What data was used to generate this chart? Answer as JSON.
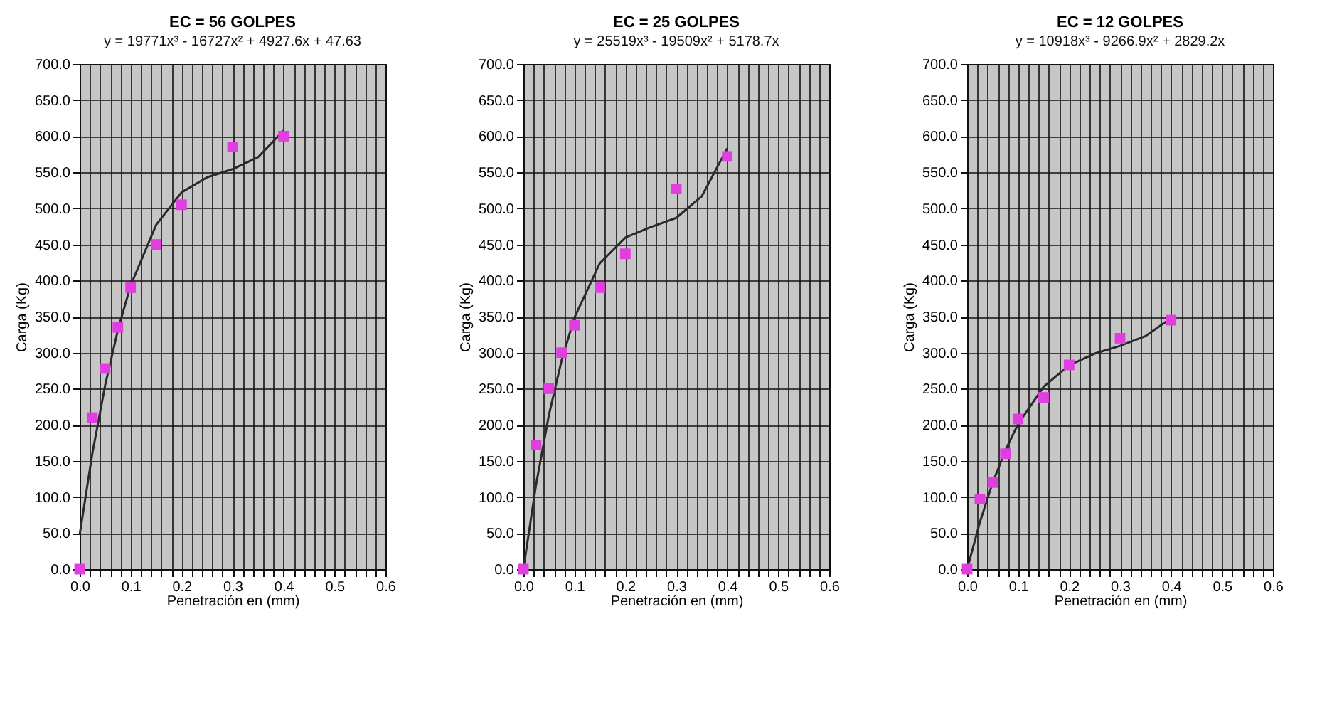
{
  "chart_data": [
    {
      "type": "scatter",
      "title": "EC = 56 GOLPES",
      "xlabel": "Penetración en (mm)",
      "ylabel": "Carga (Kg)",
      "annotations": [
        "y = 19771x³ - 16727x² + 4927.6x + 47.63"
      ],
      "marker": "square",
      "grid": true,
      "xlim": [
        0,
        0.6
      ],
      "ylim": [
        0,
        700
      ],
      "xticks": [
        {
          "value": 0,
          "label": "0.0"
        },
        {
          "value": 0.02,
          "label": null
        },
        {
          "value": 0.04,
          "label": null
        },
        {
          "value": 0.06,
          "label": null
        },
        {
          "value": 0.08,
          "label": null
        },
        {
          "value": 0.1,
          "label": "0.1"
        },
        {
          "value": 0.12,
          "label": null
        },
        {
          "value": 0.14,
          "label": null
        },
        {
          "value": 0.16,
          "label": null
        },
        {
          "value": 0.18,
          "label": null
        },
        {
          "value": 0.2,
          "label": "0.2"
        },
        {
          "value": 0.22,
          "label": null
        },
        {
          "value": 0.24,
          "label": null
        },
        {
          "value": 0.26,
          "label": null
        },
        {
          "value": 0.28,
          "label": null
        },
        {
          "value": 0.3,
          "label": "0.3"
        },
        {
          "value": 0.32,
          "label": null
        },
        {
          "value": 0.34,
          "label": null
        },
        {
          "value": 0.36,
          "label": null
        },
        {
          "value": 0.38,
          "label": null
        },
        {
          "value": 0.4,
          "label": "0.4"
        },
        {
          "value": 0.42,
          "label": null
        },
        {
          "value": 0.44,
          "label": null
        },
        {
          "value": 0.46,
          "label": null
        },
        {
          "value": 0.48,
          "label": null
        },
        {
          "value": 0.5,
          "label": "0.5"
        },
        {
          "value": 0.52,
          "label": null
        },
        {
          "value": 0.54,
          "label": null
        },
        {
          "value": 0.56,
          "label": null
        },
        {
          "value": 0.58,
          "label": null
        },
        {
          "value": 0.6,
          "label": "0.6"
        }
      ],
      "yticks": [
        {
          "value": 0,
          "label": "0.0"
        },
        {
          "value": 50,
          "label": "50.0"
        },
        {
          "value": 100,
          "label": "100.0"
        },
        {
          "value": 150,
          "label": "150.0"
        },
        {
          "value": 200,
          "label": "200.0"
        },
        {
          "value": 250,
          "label": "250.0"
        },
        {
          "value": 300,
          "label": "300.0"
        },
        {
          "value": 350,
          "label": "350.0"
        },
        {
          "value": 400,
          "label": "400.0"
        },
        {
          "value": 450,
          "label": "450.0"
        },
        {
          "value": 500,
          "label": "500.0"
        },
        {
          "value": 550,
          "label": "550.0"
        },
        {
          "value": 600,
          "label": "600.0"
        },
        {
          "value": 650,
          "label": "650.0"
        },
        {
          "value": 700,
          "label": "700.0"
        }
      ],
      "series": [
        {
          "type": "line",
          "color": "#2a2a2a",
          "marker": "none",
          "x": [
            0,
            0.025,
            0.05,
            0.075,
            0.1,
            0.15,
            0.2,
            0.25,
            0.3,
            0.35,
            0.4
          ],
          "values": [
            47.6,
            160.7,
            254.7,
            331.4,
            392.9,
            477.1,
            522.2,
            543.0,
            554.3,
            570.9,
            607.7
          ]
        },
        {
          "type": "scatter",
          "color": "#e03ee0",
          "x": [
            0,
            0.025,
            0.05,
            0.075,
            0.1,
            0.15,
            0.2,
            0.3,
            0.4
          ],
          "values": [
            0,
            210,
            278,
            335,
            390,
            450,
            505,
            585,
            600
          ]
        }
      ]
    },
    {
      "type": "scatter",
      "title": "EC = 25 GOLPES",
      "xlabel": "Penetración en (mm)",
      "ylabel": "Carga (Kg)",
      "annotations": [
        "y = 25519x³ - 19509x² + 5178.7x"
      ],
      "marker": "square",
      "grid": true,
      "xlim": [
        0,
        0.6
      ],
      "ylim": [
        0,
        700
      ],
      "xticks": [
        {
          "value": 0,
          "label": "0.0"
        },
        {
          "value": 0.02,
          "label": null
        },
        {
          "value": 0.04,
          "label": null
        },
        {
          "value": 0.06,
          "label": null
        },
        {
          "value": 0.08,
          "label": null
        },
        {
          "value": 0.1,
          "label": "0.1"
        },
        {
          "value": 0.12,
          "label": null
        },
        {
          "value": 0.14,
          "label": null
        },
        {
          "value": 0.16,
          "label": null
        },
        {
          "value": 0.18,
          "label": null
        },
        {
          "value": 0.2,
          "label": "0.2"
        },
        {
          "value": 0.22,
          "label": null
        },
        {
          "value": 0.24,
          "label": null
        },
        {
          "value": 0.26,
          "label": null
        },
        {
          "value": 0.28,
          "label": null
        },
        {
          "value": 0.3,
          "label": "0.3"
        },
        {
          "value": 0.32,
          "label": null
        },
        {
          "value": 0.34,
          "label": null
        },
        {
          "value": 0.36,
          "label": null
        },
        {
          "value": 0.38,
          "label": null
        },
        {
          "value": 0.4,
          "label": "0.4"
        },
        {
          "value": 0.42,
          "label": null
        },
        {
          "value": 0.44,
          "label": null
        },
        {
          "value": 0.46,
          "label": null
        },
        {
          "value": 0.48,
          "label": null
        },
        {
          "value": 0.5,
          "label": "0.5"
        },
        {
          "value": 0.52,
          "label": null
        },
        {
          "value": 0.54,
          "label": null
        },
        {
          "value": 0.56,
          "label": null
        },
        {
          "value": 0.58,
          "label": null
        },
        {
          "value": 0.6,
          "label": "0.6"
        }
      ],
      "yticks": [
        {
          "value": 0,
          "label": "0.0"
        },
        {
          "value": 50,
          "label": "50.0"
        },
        {
          "value": 100,
          "label": "100.0"
        },
        {
          "value": 150,
          "label": "150.0"
        },
        {
          "value": 200,
          "label": "200.0"
        },
        {
          "value": 250,
          "label": "250.0"
        },
        {
          "value": 300,
          "label": "300.0"
        },
        {
          "value": 350,
          "label": "350.0"
        },
        {
          "value": 400,
          "label": "400.0"
        },
        {
          "value": 450,
          "label": "450.0"
        },
        {
          "value": 500,
          "label": "500.0"
        },
        {
          "value": 550,
          "label": "550.0"
        },
        {
          "value": 600,
          "label": "600.0"
        },
        {
          "value": 650,
          "label": "650.0"
        },
        {
          "value": 700,
          "label": "700.0"
        }
      ],
      "series": [
        {
          "type": "line",
          "color": "#2a2a2a",
          "marker": "none",
          "x": [
            0,
            0.025,
            0.05,
            0.075,
            0.1,
            0.15,
            0.2,
            0.25,
            0.3,
            0.35,
            0.4
          ],
          "values": [
            0,
            117.7,
            213.4,
            289.4,
            348.3,
            424.0,
            459.5,
            474.1,
            486.8,
            516.8,
            583.3
          ]
        },
        {
          "type": "scatter",
          "color": "#e03ee0",
          "x": [
            0,
            0.025,
            0.05,
            0.075,
            0.1,
            0.15,
            0.2,
            0.3,
            0.4
          ],
          "values": [
            0,
            172,
            250,
            300,
            338,
            390,
            437,
            527,
            572
          ]
        }
      ]
    },
    {
      "type": "scatter",
      "title": "EC = 12 GOLPES",
      "xlabel": "Penetración en (mm)",
      "ylabel": "Carga (Kg)",
      "annotations": [
        "y = 10918x³ - 9266.9x² + 2829.2x"
      ],
      "marker": "square",
      "grid": true,
      "xlim": [
        0,
        0.6
      ],
      "ylim": [
        0,
        700
      ],
      "xticks": [
        {
          "value": 0,
          "label": "0.0"
        },
        {
          "value": 0.02,
          "label": null
        },
        {
          "value": 0.04,
          "label": null
        },
        {
          "value": 0.06,
          "label": null
        },
        {
          "value": 0.08,
          "label": null
        },
        {
          "value": 0.1,
          "label": "0.1"
        },
        {
          "value": 0.12,
          "label": null
        },
        {
          "value": 0.14,
          "label": null
        },
        {
          "value": 0.16,
          "label": null
        },
        {
          "value": 0.18,
          "label": null
        },
        {
          "value": 0.2,
          "label": "0.2"
        },
        {
          "value": 0.22,
          "label": null
        },
        {
          "value": 0.24,
          "label": null
        },
        {
          "value": 0.26,
          "label": null
        },
        {
          "value": 0.28,
          "label": null
        },
        {
          "value": 0.3,
          "label": "0.3"
        },
        {
          "value": 0.32,
          "label": null
        },
        {
          "value": 0.34,
          "label": null
        },
        {
          "value": 0.36,
          "label": null
        },
        {
          "value": 0.38,
          "label": null
        },
        {
          "value": 0.4,
          "label": "0.4"
        },
        {
          "value": 0.42,
          "label": null
        },
        {
          "value": 0.44,
          "label": null
        },
        {
          "value": 0.46,
          "label": null
        },
        {
          "value": 0.48,
          "label": null
        },
        {
          "value": 0.5,
          "label": "0.5"
        },
        {
          "value": 0.52,
          "label": null
        },
        {
          "value": 0.54,
          "label": null
        },
        {
          "value": 0.56,
          "label": null
        },
        {
          "value": 0.58,
          "label": null
        },
        {
          "value": 0.6,
          "label": "0.6"
        }
      ],
      "yticks": [
        {
          "value": 0,
          "label": "0.0"
        },
        {
          "value": 50,
          "label": "50.0"
        },
        {
          "value": 100,
          "label": "100.0"
        },
        {
          "value": 150,
          "label": "150.0"
        },
        {
          "value": 200,
          "label": "200.0"
        },
        {
          "value": 250,
          "label": "250.0"
        },
        {
          "value": 300,
          "label": "300.0"
        },
        {
          "value": 350,
          "label": "350.0"
        },
        {
          "value": 400,
          "label": "400.0"
        },
        {
          "value": 450,
          "label": "450.0"
        },
        {
          "value": 500,
          "label": "500.0"
        },
        {
          "value": 550,
          "label": "550.0"
        },
        {
          "value": 600,
          "label": "600.0"
        },
        {
          "value": 650,
          "label": "650.0"
        },
        {
          "value": 700,
          "label": "700.0"
        }
      ],
      "series": [
        {
          "type": "line",
          "color": "#2a2a2a",
          "marker": "none",
          "x": [
            0,
            0.025,
            0.05,
            0.075,
            0.1,
            0.15,
            0.2,
            0.25,
            0.3,
            0.35,
            0.4
          ],
          "values": [
            0,
            65.1,
            119.7,
            164.7,
            201.2,
            252.7,
            282.5,
            298.7,
            309.5,
            323.1,
            347.7
          ]
        },
        {
          "type": "scatter",
          "color": "#e03ee0",
          "x": [
            0,
            0.025,
            0.05,
            0.075,
            0.1,
            0.15,
            0.2,
            0.3,
            0.4
          ],
          "values": [
            0,
            97,
            120,
            160,
            208,
            238,
            283,
            320,
            345
          ]
        }
      ]
    }
  ]
}
